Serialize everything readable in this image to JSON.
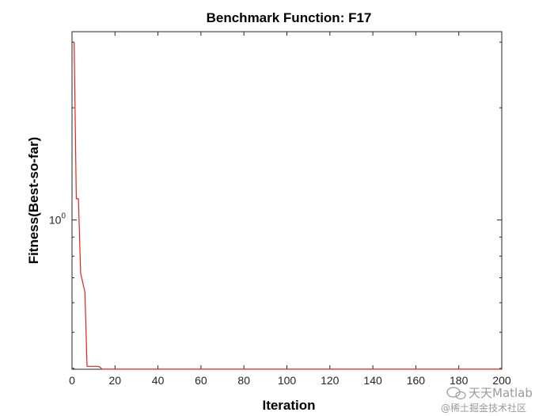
{
  "chart_data": {
    "type": "line",
    "title": "Benchmark Function: F17",
    "xlabel": "Iteration",
    "ylabel": "Fitness(Best-so-far)",
    "xlim": [
      0,
      200
    ],
    "ylim": [
      0.3978,
      3.2
    ],
    "yscale": "log",
    "xticks": [
      "0",
      "20",
      "40",
      "60",
      "80",
      "100",
      "120",
      "140",
      "160",
      "180",
      "200"
    ],
    "yticks": [
      {
        "base": "10",
        "exp": "0"
      }
    ],
    "grid": false,
    "series": [
      {
        "color": "#e8211a",
        "x": [
          1,
          2,
          3,
          4,
          6,
          7,
          8,
          9,
          10,
          11,
          12,
          13,
          14,
          200
        ],
        "y": [
          3.0,
          1.14,
          1.14,
          0.72,
          0.64,
          0.405,
          0.405,
          0.405,
          0.405,
          0.405,
          0.405,
          0.403,
          0.3979,
          0.3979
        ]
      }
    ]
  },
  "watermark": {
    "line1": "天天Matlab",
    "line2": "@稀土掘金技术社区"
  }
}
